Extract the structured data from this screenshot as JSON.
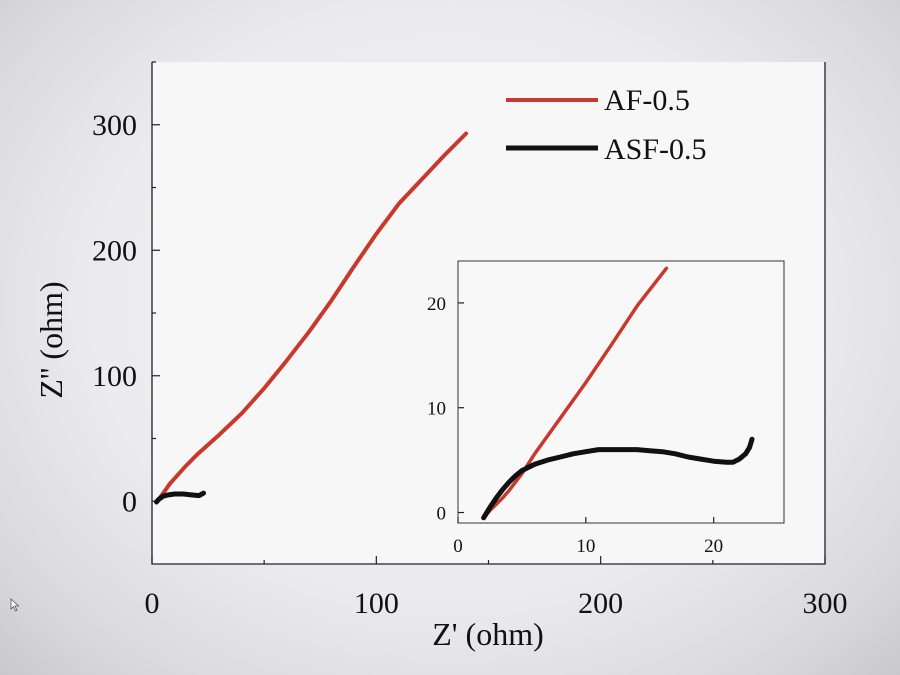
{
  "chart_data": {
    "type": "line",
    "xlabel": "Z' (ohm)",
    "ylabel": "Z'' (ohm)",
    "xlim": [
      0,
      300
    ],
    "ylim": [
      -50,
      350
    ],
    "xticks": [
      "0",
      "100",
      "200",
      "300"
    ],
    "yticks": [
      "0",
      "100",
      "200",
      "300"
    ],
    "legend_position": "top-right",
    "series": [
      {
        "name": "AF-0.5",
        "color": "#c9382c",
        "x": [
          2,
          4,
          6,
          8,
          10,
          15,
          20,
          30,
          40,
          50,
          60,
          70,
          80,
          90,
          100,
          110,
          120,
          130,
          140
        ],
        "y": [
          -1,
          4,
          9,
          14,
          18,
          28,
          37,
          53,
          70,
          90,
          112,
          135,
          160,
          187,
          213,
          237,
          256,
          275,
          293
        ]
      },
      {
        "name": "ASF-0.5",
        "color": "#111111",
        "x": [
          2,
          3,
          5,
          7,
          10,
          14,
          18,
          21,
          22,
          23
        ],
        "y": [
          -0.5,
          1.5,
          4,
          5,
          5.8,
          5.8,
          5,
          4.5,
          5.5,
          6.5
        ]
      }
    ],
    "inset": {
      "xlim": [
        0,
        25.5
      ],
      "ylim": [
        -1,
        24
      ],
      "xticks": [
        "0",
        "10",
        "20"
      ],
      "yticks": [
        "0",
        "10",
        "20"
      ],
      "series": [
        {
          "name": "AF-0.5",
          "x": [
            2.0,
            2.5,
            3.0,
            3.5,
            4.0,
            5.0,
            6.0,
            7.0,
            8.0,
            10.0,
            12.0,
            14.0,
            16.3
          ],
          "y": [
            -0.5,
            0.2,
            0.8,
            1.4,
            2.1,
            3.7,
            5.6,
            7.3,
            9.0,
            12.4,
            16.0,
            19.7,
            23.3
          ]
        },
        {
          "name": "ASF-0.5",
          "x": [
            2.0,
            2.5,
            3.0,
            3.5,
            4.0,
            4.5,
            5.0,
            6.0,
            7.0,
            8.0,
            9.0,
            10.0,
            11.0,
            12.0,
            13.0,
            14.0,
            15.0,
            16.0,
            17.0,
            18.0,
            19.0,
            20.0,
            21.0,
            21.5,
            22.0,
            22.5,
            22.8,
            23.0
          ],
          "y": [
            -0.5,
            0.5,
            1.4,
            2.2,
            2.9,
            3.5,
            4.0,
            4.6,
            5.0,
            5.3,
            5.6,
            5.8,
            6.0,
            6.0,
            6.0,
            6.0,
            5.9,
            5.8,
            5.6,
            5.3,
            5.1,
            4.9,
            4.8,
            4.8,
            5.1,
            5.6,
            6.2,
            7.0
          ]
        }
      ]
    }
  }
}
